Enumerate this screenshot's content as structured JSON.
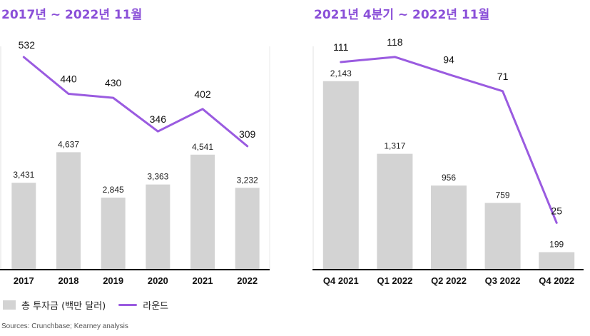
{
  "legend": {
    "investment_label": "총 투자금 (백만 달러)",
    "rounds_label": "라운드"
  },
  "source": "Sources: Crunchbase; Kearney analysis",
  "colors": {
    "bar": "#d3d3d3",
    "line": "#9a5be0",
    "title": "#8a4fd8"
  },
  "chart_data": [
    {
      "type": "bar",
      "title": "2017년 ~ 2022년 11월",
      "categories": [
        "2017",
        "2018",
        "2019",
        "2020",
        "2021",
        "2022"
      ],
      "series": [
        {
          "name": "총 투자금 (백만 달러)",
          "type": "bar",
          "values": [
            3431,
            4637,
            2845,
            3363,
            4541,
            3232
          ]
        },
        {
          "name": "라운드",
          "type": "line",
          "values": [
            532,
            440,
            430,
            346,
            402,
            309
          ]
        }
      ],
      "grid": false,
      "legend": "bottom-left"
    },
    {
      "type": "bar",
      "title": "2021년 4분기 ~ 2022년 11월",
      "categories": [
        "Q4 2021",
        "Q1 2022",
        "Q2 2022",
        "Q3 2022",
        "Q4 2022"
      ],
      "series": [
        {
          "name": "총 투자금 (백만 달러)",
          "type": "bar",
          "values": [
            2143,
            1317,
            956,
            759,
            199
          ]
        },
        {
          "name": "라운드",
          "type": "line",
          "values": [
            111,
            118,
            94,
            71,
            25
          ]
        }
      ],
      "grid": false,
      "legend": "bottom-left"
    }
  ]
}
